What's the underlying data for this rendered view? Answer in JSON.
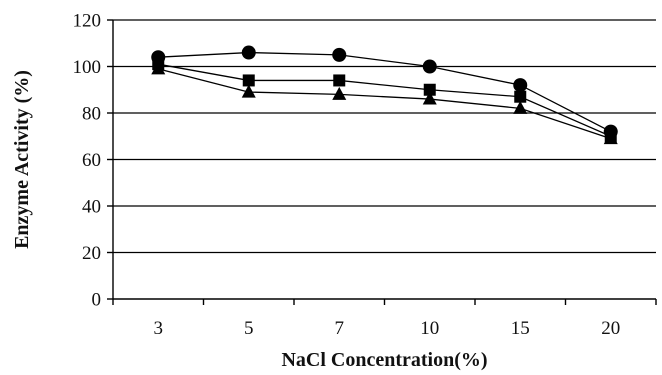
{
  "chart_data": {
    "type": "line",
    "title": "",
    "xlabel": "NaCl Concentration(%)",
    "ylabel": "Enzyme Activity (%)",
    "categories": [
      "3",
      "5",
      "7",
      "10",
      "15",
      "20"
    ],
    "ylim": [
      0,
      120
    ],
    "yticks": [
      "0",
      "20",
      "40",
      "60",
      "80",
      "100",
      "120"
    ],
    "grid": "horizontal",
    "series": [
      {
        "marker": "circle",
        "values": [
          104,
          106,
          105,
          100,
          92,
          72
        ]
      },
      {
        "marker": "square",
        "values": [
          101,
          94,
          94,
          90,
          87,
          70
        ]
      },
      {
        "marker": "triangle",
        "values": [
          99,
          89,
          88,
          86,
          82,
          69
        ]
      }
    ]
  }
}
